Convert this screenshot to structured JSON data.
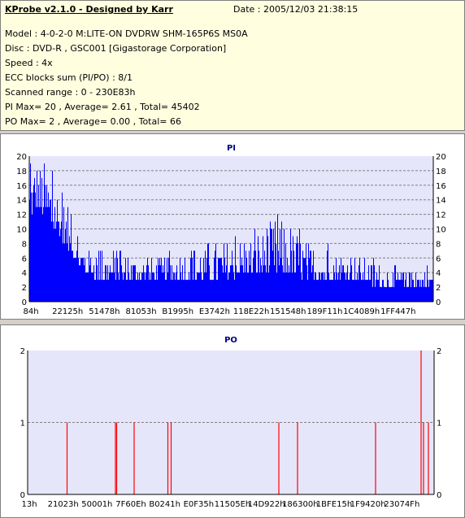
{
  "header": {
    "app_title": "KProbe v2.1.0 - Designed by Karr",
    "date": "Date : 2005/12/03 21:38:15",
    "lines": [
      "Model : 4-0-2-0 M:LITE-ON DVDRW SHM-165P6S MS0A",
      "Disc : DVD-R , GSC001 [Gigastorage Corporation]",
      "Speed : 4x",
      "ECC blocks sum (PI/PO) : 8/1",
      "Scanned range : 0 - 230E83h",
      "PI Max= 20 , Average= 2.61 , Total= 45402",
      "PO Max= 2 , Average= 0.00 , Total= 66"
    ]
  },
  "colors": {
    "pi_fill": "#0000ff",
    "po_line": "#ff0000",
    "plot_bg": "#e6e6fa",
    "grid": "#808080",
    "title": "#000080"
  },
  "chart_data": [
    {
      "type": "bar",
      "title": "PI",
      "xlabel": "",
      "ylabel": "",
      "ylim": [
        0,
        20
      ],
      "yticks": [
        0,
        2,
        4,
        6,
        8,
        10,
        12,
        14,
        16,
        18,
        20
      ],
      "xticklabels": [
        "84h",
        "22125h",
        "51478h",
        "81053h",
        "B1995h",
        "E3742h",
        "118E22h",
        "151548h",
        "189F11h",
        "1C4089h",
        "1FF447h"
      ],
      "grid": true,
      "envelope": [
        {
          "x": 0.0,
          "base": 11,
          "peak": 19
        },
        {
          "x": 0.02,
          "base": 13,
          "peak": 20
        },
        {
          "x": 0.06,
          "base": 10,
          "peak": 18
        },
        {
          "x": 0.1,
          "base": 7,
          "peak": 12
        },
        {
          "x": 0.13,
          "base": 4,
          "peak": 8
        },
        {
          "x": 0.18,
          "base": 3,
          "peak": 7
        },
        {
          "x": 0.3,
          "base": 3,
          "peak": 6
        },
        {
          "x": 0.45,
          "base": 3,
          "peak": 8
        },
        {
          "x": 0.58,
          "base": 4,
          "peak": 10
        },
        {
          "x": 0.62,
          "base": 4,
          "peak": 12
        },
        {
          "x": 0.7,
          "base": 3,
          "peak": 8
        },
        {
          "x": 0.8,
          "base": 3,
          "peak": 7
        },
        {
          "x": 0.88,
          "base": 2,
          "peak": 5
        },
        {
          "x": 0.96,
          "base": 2,
          "peak": 4
        },
        {
          "x": 1.0,
          "base": 2,
          "peak": 6
        }
      ]
    },
    {
      "type": "bar",
      "title": "PO",
      "xlabel": "",
      "ylabel": "",
      "ylim": [
        0,
        2
      ],
      "yticks": [
        0,
        1,
        2
      ],
      "xticklabels": [
        "13h",
        "21023h",
        "50001h",
        "7F60Eh",
        "B0241h",
        "E0F35h",
        "11505Eh",
        "14D922h",
        "186300h",
        "1BFE15h",
        "1F9420h",
        "23074Fh"
      ],
      "grid": true,
      "spikes": [
        {
          "x": 0.097,
          "value": 1
        },
        {
          "x": 0.216,
          "value": 1
        },
        {
          "x": 0.219,
          "value": 1
        },
        {
          "x": 0.262,
          "value": 1
        },
        {
          "x": 0.345,
          "value": 1
        },
        {
          "x": 0.353,
          "value": 1
        },
        {
          "x": 0.618,
          "value": 1
        },
        {
          "x": 0.664,
          "value": 1
        },
        {
          "x": 0.856,
          "value": 1
        },
        {
          "x": 0.968,
          "value": 2
        },
        {
          "x": 0.974,
          "value": 1
        },
        {
          "x": 0.986,
          "value": 1
        }
      ]
    }
  ]
}
